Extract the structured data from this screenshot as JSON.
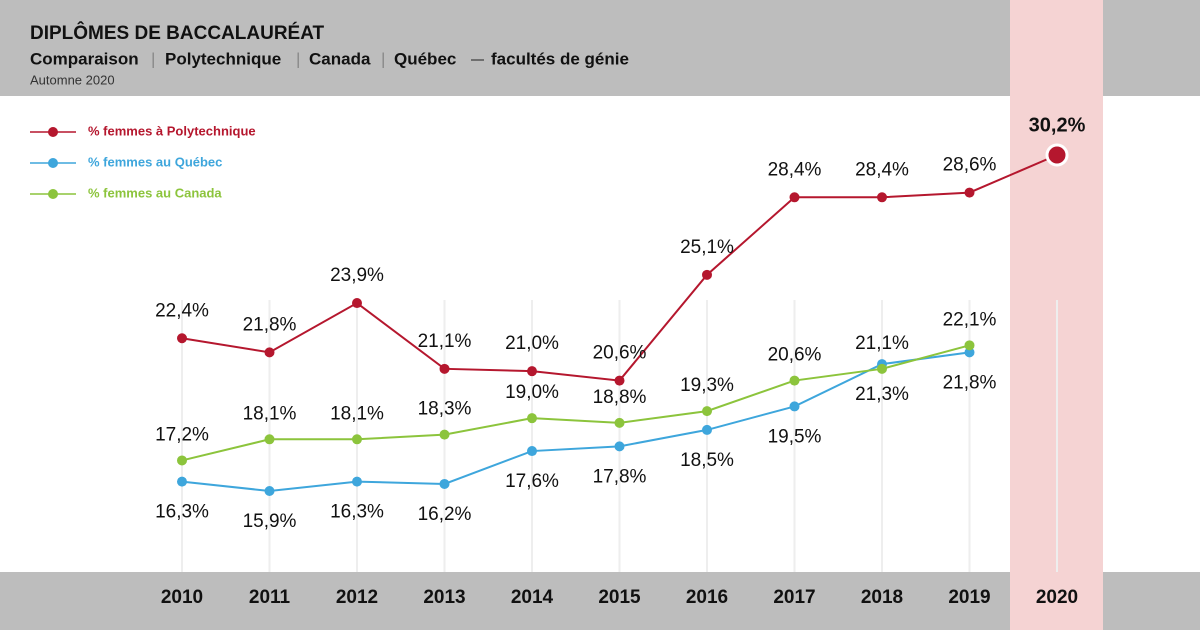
{
  "chart_data": {
    "type": "line",
    "title": "DIPLÔMES DE BACCALAURÉAT",
    "subtitle": [
      "Comparaison",
      "Polytechnique",
      "Canada",
      "Québec",
      "facultés de génie"
    ],
    "note": "Automne 2020",
    "categories": [
      "2010",
      "2011",
      "2012",
      "2013",
      "2014",
      "2015",
      "2016",
      "2017",
      "2018",
      "2019",
      "2020"
    ],
    "series": [
      {
        "name": "% femmes à Polytechnique",
        "color": "#b5172e",
        "values": [
          22.4,
          21.8,
          23.9,
          21.1,
          21.0,
          20.6,
          25.1,
          28.4,
          28.4,
          28.6,
          30.2
        ],
        "value_labels": [
          "22,4%",
          "21,8%",
          "23,9%",
          "21,1%",
          "21,0%",
          "20,6%",
          "25,1%",
          "28,4%",
          "28,4%",
          "28,6%",
          "30,2%"
        ]
      },
      {
        "name": "% femmes au Québec",
        "color": "#3ea6dc",
        "values": [
          16.3,
          15.9,
          16.3,
          16.2,
          17.6,
          17.8,
          18.5,
          19.5,
          21.3,
          21.8,
          null
        ],
        "value_labels": [
          "16,3%",
          "15,9%",
          "16,3%",
          "16,2%",
          "17,6%",
          "17,8%",
          "18,5%",
          "19,5%",
          "21,3%",
          "21,8%",
          null
        ]
      },
      {
        "name": "% femmes au Canada",
        "color": "#8cc43c",
        "values": [
          17.2,
          18.1,
          18.1,
          18.3,
          19.0,
          18.8,
          19.3,
          20.6,
          21.1,
          22.1,
          null
        ],
        "value_labels": [
          "17,2%",
          "18,1%",
          "18,1%",
          "18,3%",
          "19,0%",
          "18,8%",
          "19,3%",
          "20,6%",
          "21,1%",
          "22,1%",
          null
        ]
      }
    ]
  }
}
